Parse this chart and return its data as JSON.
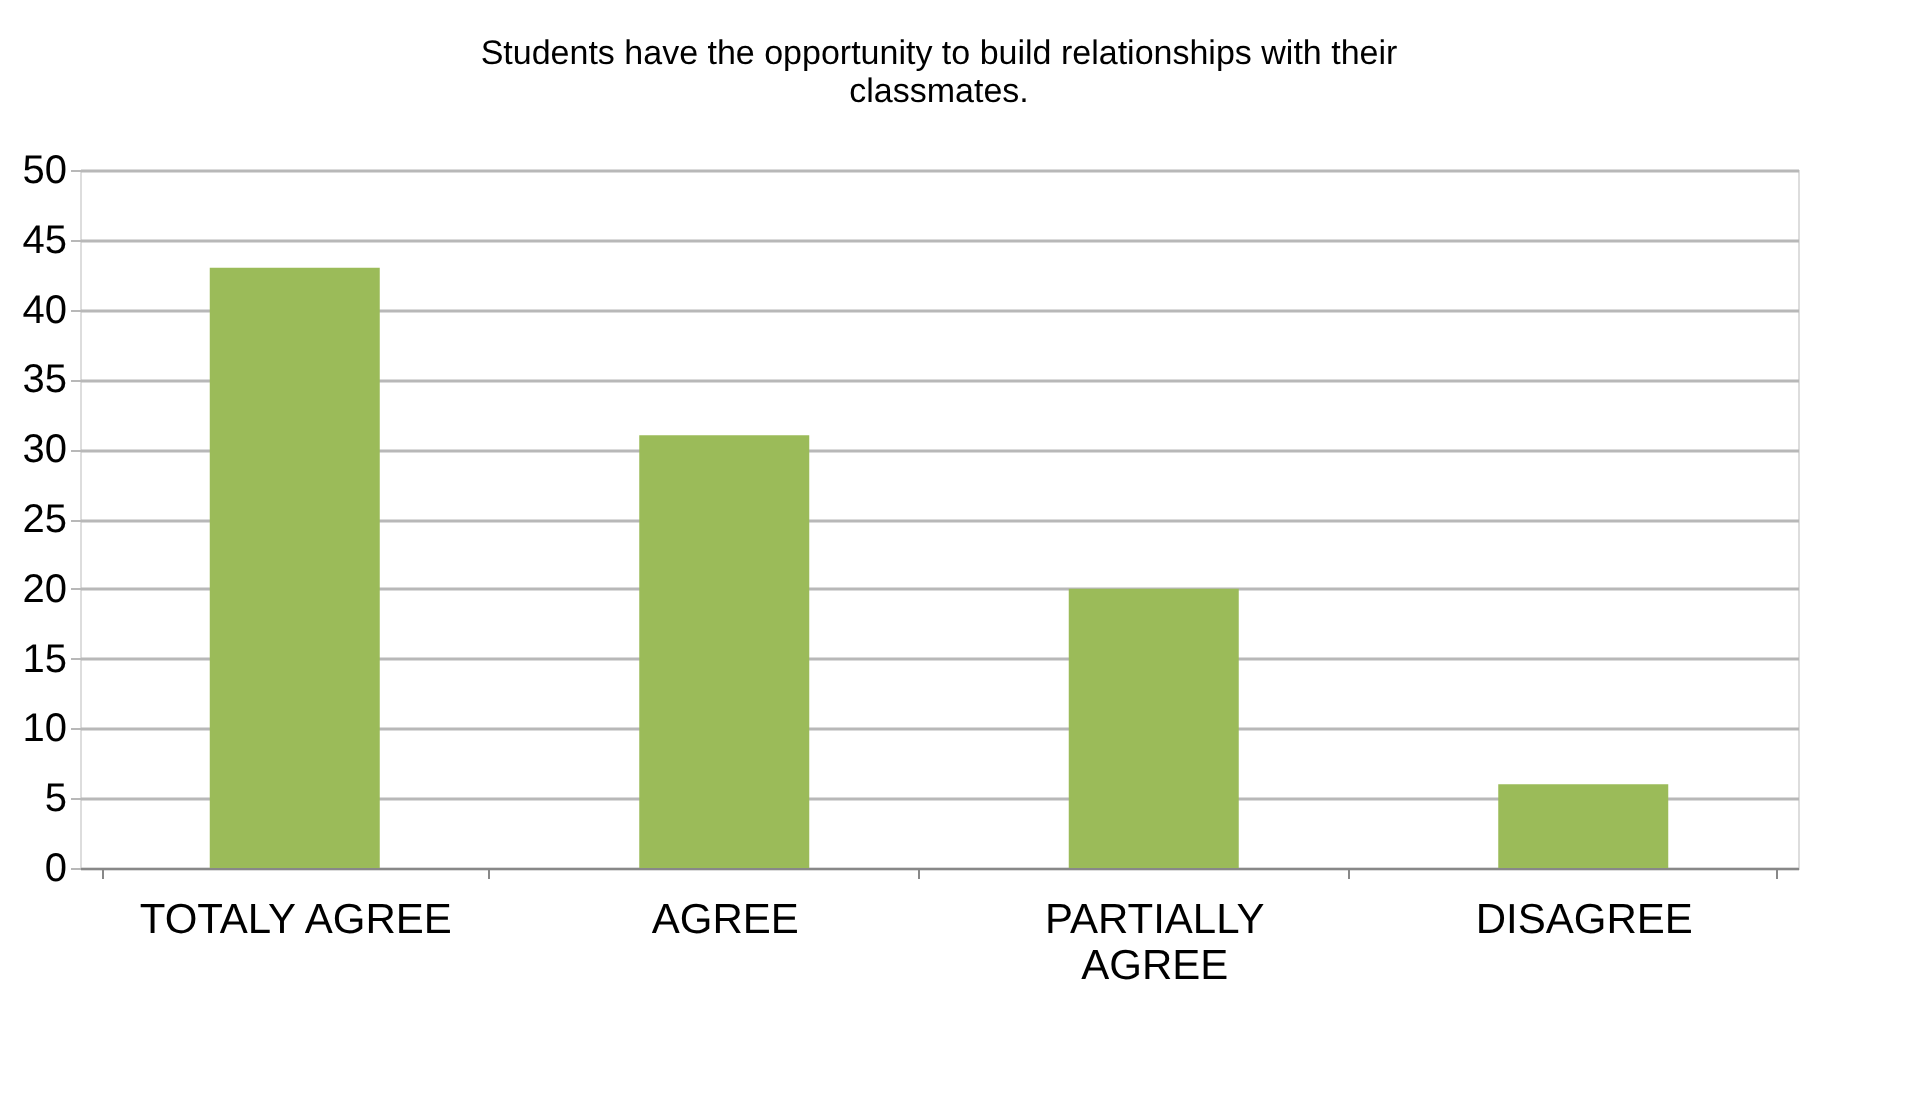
{
  "chart_data": {
    "type": "bar",
    "title": "Students have the opportunity to build relationships with their classmates.",
    "categories": [
      "TOTALY AGREE",
      "AGREE",
      "PARTIALLY AGREE",
      "DISAGREE"
    ],
    "values": [
      43,
      31,
      20,
      6
    ],
    "color": "#9bbb59",
    "ylim": [
      0,
      50
    ],
    "yticks": [
      0,
      5,
      10,
      15,
      20,
      25,
      30,
      35,
      40,
      45,
      50
    ],
    "grid": "y"
  }
}
